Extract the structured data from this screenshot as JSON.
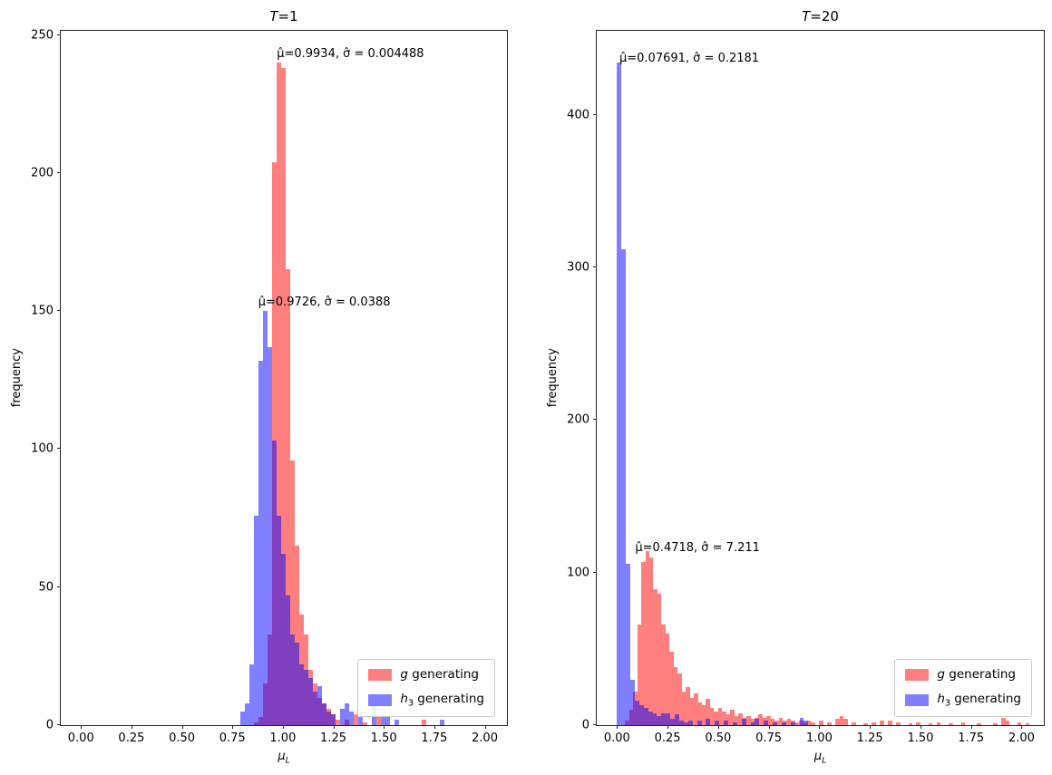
{
  "figure": {
    "background": "#ffffff",
    "red_color": "rgba(255,0,0,0.5)",
    "blue_color": "rgba(0,0,255,0.5)",
    "red_hex_on_white": "#ff8080",
    "blue_hex_on_white": "#8080ff",
    "overlap_hex": "#8040bf"
  },
  "chart_data": [
    {
      "type": "bar",
      "subtype": "histogram",
      "title": {
        "math": "T",
        "rest": "=1"
      },
      "xlabel": {
        "math": "μ",
        "sub": "L"
      },
      "ylabel": "frequency",
      "xlim": [
        -0.1,
        2.11
      ],
      "ylim": [
        0,
        251.5
      ],
      "grid": false,
      "legend_position": "lower right",
      "xticks": {
        "values": [
          0.0,
          0.25,
          0.5,
          0.75,
          1.0,
          1.25,
          1.5,
          1.75,
          2.0
        ],
        "labels": [
          "0.00",
          "0.25",
          "0.50",
          "0.75",
          "1.00",
          "1.25",
          "1.50",
          "1.75",
          "2.00"
        ]
      },
      "yticks": {
        "values": [
          0,
          50,
          100,
          150,
          200,
          250
        ],
        "labels": [
          "0",
          "50",
          "100",
          "150",
          "200",
          "250"
        ]
      },
      "annotations": [
        {
          "text": "μ̂=0.9934, σ̂ = 0.004488",
          "x": 0.97,
          "y": 241
        },
        {
          "text": "μ̂=0.9726, σ̂ = 0.0388",
          "x": 0.878,
          "y": 151
        }
      ],
      "legend": [
        {
          "math": "g",
          "sub": "",
          "rest": " generating",
          "color": "rgba(255,0,0,0.5)"
        },
        {
          "math": "h",
          "sub": "3",
          "rest": " generating",
          "color": "rgba(0,0,255,0.5)"
        }
      ],
      "series": [
        {
          "name": "g generating",
          "color": "rgba(255,0,0,0.5)",
          "bin_width": 0.0225,
          "bins": [
            [
              0.857,
              1
            ],
            [
              0.879,
              3
            ],
            [
              0.902,
              15
            ],
            [
              0.924,
              33
            ],
            [
              0.947,
              204
            ],
            [
              0.969,
              240
            ],
            [
              0.992,
              238
            ],
            [
              1.014,
              165
            ],
            [
              1.037,
              96
            ],
            [
              1.059,
              65
            ],
            [
              1.082,
              40
            ],
            [
              1.104,
              33
            ],
            [
              1.127,
              20
            ],
            [
              1.149,
              15
            ],
            [
              1.172,
              10
            ],
            [
              1.194,
              8
            ],
            [
              1.217,
              6
            ],
            [
              1.239,
              4
            ],
            [
              1.262,
              2
            ],
            [
              1.307,
              2
            ],
            [
              1.352,
              4
            ],
            [
              1.397,
              1
            ],
            [
              1.464,
              3
            ],
            [
              1.689,
              2
            ]
          ]
        },
        {
          "name": "h3 generating",
          "color": "rgba(0,0,255,0.5)",
          "bin_width": 0.0225,
          "bins": [
            [
              0.789,
              5
            ],
            [
              0.811,
              8
            ],
            [
              0.834,
              22
            ],
            [
              0.856,
              76
            ],
            [
              0.879,
              132
            ],
            [
              0.901,
              150
            ],
            [
              0.924,
              137
            ],
            [
              0.946,
              103
            ],
            [
              0.969,
              76
            ],
            [
              0.991,
              62
            ],
            [
              1.014,
              47
            ],
            [
              1.036,
              33
            ],
            [
              1.059,
              30
            ],
            [
              1.081,
              22
            ],
            [
              1.104,
              20
            ],
            [
              1.126,
              17
            ],
            [
              1.149,
              12
            ],
            [
              1.171,
              14
            ],
            [
              1.194,
              8
            ],
            [
              1.216,
              5
            ],
            [
              1.239,
              4
            ],
            [
              1.284,
              6
            ],
            [
              1.306,
              8
            ],
            [
              1.329,
              5
            ],
            [
              1.374,
              3
            ],
            [
              1.441,
              7
            ],
            [
              1.486,
              4
            ],
            [
              1.509,
              3
            ],
            [
              1.554,
              2
            ],
            [
              1.779,
              2
            ]
          ]
        }
      ]
    },
    {
      "type": "bar",
      "subtype": "histogram",
      "title": {
        "math": "T",
        "rest": "=20"
      },
      "xlabel": {
        "math": "μ",
        "sub": "L"
      },
      "ylabel": "frequency",
      "xlim": [
        -0.1,
        2.11
      ],
      "ylim": [
        0,
        455
      ],
      "grid": false,
      "legend_position": "lower right",
      "xticks": {
        "values": [
          0.0,
          0.25,
          0.5,
          0.75,
          1.0,
          1.25,
          1.5,
          1.75,
          2.0
        ],
        "labels": [
          "0.00",
          "0.25",
          "0.50",
          "0.75",
          "1.00",
          "1.25",
          "1.50",
          "1.75",
          "2.00"
        ]
      },
      "yticks": {
        "values": [
          0,
          100,
          200,
          300,
          400
        ],
        "labels": [
          "0",
          "100",
          "200",
          "300",
          "400"
        ]
      },
      "annotations": [
        {
          "text": "μ̂=0.07691, σ̂ = 0.2181",
          "x": 0.012,
          "y": 433
        },
        {
          "text": "μ̂=0.4718, σ̂ = 7.211",
          "x": 0.09,
          "y": 112
        }
      ],
      "legend": [
        {
          "math": "g",
          "sub": "",
          "rest": " generating",
          "color": "rgba(255,0,0,0.5)"
        },
        {
          "math": "h",
          "sub": "3",
          "rest": " generating",
          "color": "rgba(0,0,255,0.5)"
        }
      ],
      "series": [
        {
          "name": "g generating",
          "color": "rgba(255,0,0,0.5)",
          "bin_width": 0.02,
          "bins": [
            [
              0.04,
              3
            ],
            [
              0.06,
              10
            ],
            [
              0.08,
              22
            ],
            [
              0.1,
              66
            ],
            [
              0.12,
              107
            ],
            [
              0.14,
              114
            ],
            [
              0.16,
              110
            ],
            [
              0.18,
              89
            ],
            [
              0.2,
              86
            ],
            [
              0.22,
              66
            ],
            [
              0.24,
              60
            ],
            [
              0.26,
              48
            ],
            [
              0.28,
              38
            ],
            [
              0.3,
              34
            ],
            [
              0.32,
              22
            ],
            [
              0.34,
              25
            ],
            [
              0.36,
              18
            ],
            [
              0.38,
              21
            ],
            [
              0.4,
              15
            ],
            [
              0.42,
              13
            ],
            [
              0.44,
              17
            ],
            [
              0.46,
              11
            ],
            [
              0.48,
              9
            ],
            [
              0.5,
              11
            ],
            [
              0.52,
              9
            ],
            [
              0.54,
              7
            ],
            [
              0.56,
              10
            ],
            [
              0.58,
              6
            ],
            [
              0.6,
              8
            ],
            [
              0.62,
              5
            ],
            [
              0.64,
              6
            ],
            [
              0.66,
              4
            ],
            [
              0.68,
              5
            ],
            [
              0.7,
              7
            ],
            [
              0.72,
              5
            ],
            [
              0.74,
              6
            ],
            [
              0.76,
              4
            ],
            [
              0.78,
              3
            ],
            [
              0.8,
              5
            ],
            [
              0.82,
              3
            ],
            [
              0.84,
              4
            ],
            [
              0.86,
              3
            ],
            [
              0.88,
              2
            ],
            [
              0.9,
              3
            ],
            [
              0.92,
              2
            ],
            [
              0.94,
              3
            ],
            [
              0.96,
              2
            ],
            [
              1.0,
              3
            ],
            [
              1.04,
              2
            ],
            [
              1.08,
              4
            ],
            [
              1.1,
              6
            ],
            [
              1.12,
              4
            ],
            [
              1.16,
              2
            ],
            [
              1.22,
              1
            ],
            [
              1.26,
              2
            ],
            [
              1.3,
              3
            ],
            [
              1.34,
              3
            ],
            [
              1.38,
              2
            ],
            [
              1.44,
              1
            ],
            [
              1.48,
              2
            ],
            [
              1.54,
              1
            ],
            [
              1.58,
              2
            ],
            [
              1.64,
              1
            ],
            [
              1.7,
              2
            ],
            [
              1.78,
              1
            ],
            [
              1.86,
              1
            ],
            [
              1.9,
              5
            ],
            [
              1.92,
              3
            ],
            [
              1.98,
              2
            ],
            [
              2.02,
              1
            ]
          ]
        },
        {
          "name": "h3 generating",
          "color": "rgba(0,0,255,0.5)",
          "bin_width": 0.022,
          "bins": [
            [
              0.0,
              434
            ],
            [
              0.022,
              312
            ],
            [
              0.044,
              106
            ],
            [
              0.066,
              30
            ],
            [
              0.088,
              16
            ],
            [
              0.11,
              13
            ],
            [
              0.132,
              11
            ],
            [
              0.154,
              9
            ],
            [
              0.176,
              8
            ],
            [
              0.198,
              6
            ],
            [
              0.22,
              8
            ],
            [
              0.242,
              8
            ],
            [
              0.264,
              4
            ],
            [
              0.286,
              7
            ],
            [
              0.308,
              3
            ],
            [
              0.33,
              2
            ],
            [
              0.352,
              3
            ],
            [
              0.396,
              3
            ],
            [
              0.44,
              4
            ],
            [
              0.484,
              3
            ],
            [
              0.528,
              3
            ],
            [
              0.572,
              2
            ],
            [
              0.616,
              4
            ],
            [
              0.66,
              2
            ],
            [
              0.682,
              4
            ],
            [
              0.726,
              3
            ],
            [
              0.77,
              2
            ],
            [
              0.814,
              2
            ],
            [
              0.858,
              2
            ],
            [
              0.902,
              5
            ],
            [
              0.924,
              3
            ]
          ]
        }
      ]
    }
  ]
}
